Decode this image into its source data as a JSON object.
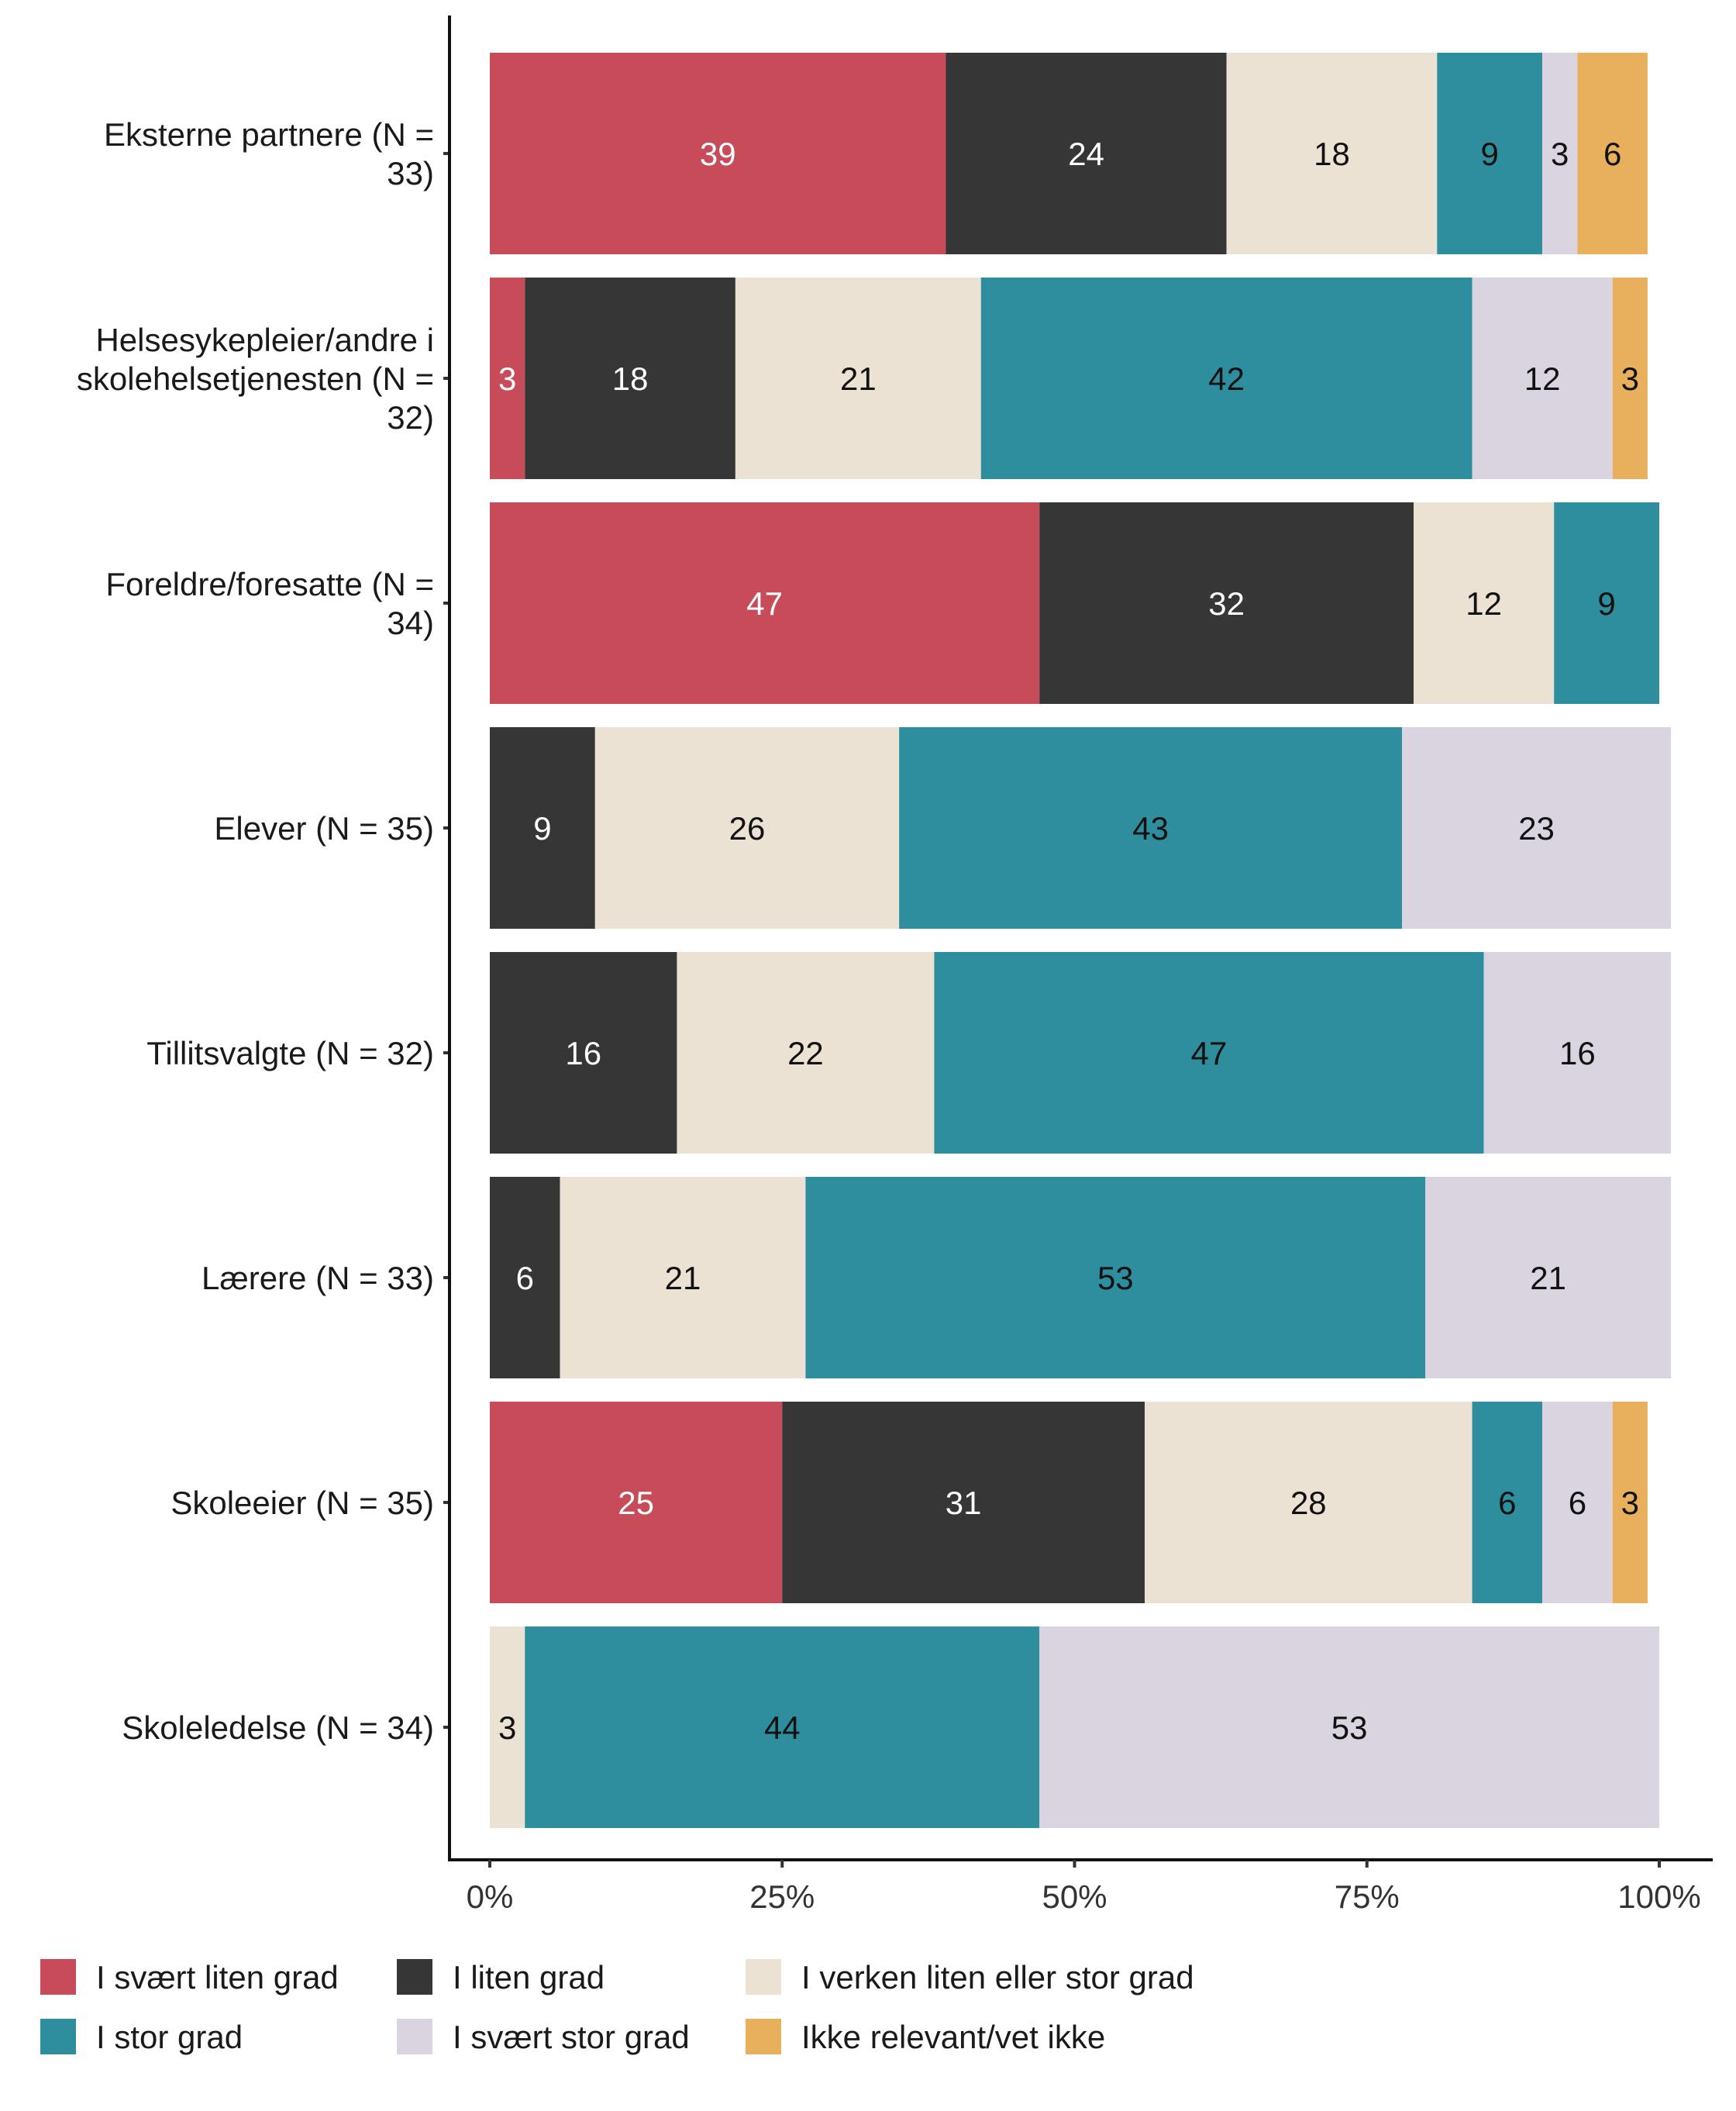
{
  "chart_data": {
    "type": "bar",
    "orientation": "horizontal",
    "stacked": true,
    "categories": [
      "Eksterne partnere (N = 33)",
      "Helsesykepleier/andre i skolehelsetjenesten (N = 32)",
      "Foreldre/foresatte (N = 34)",
      "Elever (N = 35)",
      "Tillitsvalgte (N = 32)",
      "Lærere (N = 33)",
      "Skoleeier (N = 35)",
      "Skoleledelse (N = 34)"
    ],
    "category_lines": [
      [
        "Eksterne partnere (N =",
        "33)"
      ],
      [
        "Helsesykepleier/andre i",
        "skolehelsetjenesten (N =",
        "32)"
      ],
      [
        "Foreldre/foresatte (N =",
        "34)"
      ],
      [
        "Elever (N = 35)"
      ],
      [
        "Tillitsvalgte (N = 32)"
      ],
      [
        "Lærere (N = 33)"
      ],
      [
        "Skoleeier (N = 35)"
      ],
      [
        "Skoleledelse (N = 34)"
      ]
    ],
    "series": [
      {
        "name": "I svært liten grad",
        "color": "#c84b5a",
        "label_color": "#ffffff",
        "values": [
          39,
          3,
          47,
          0,
          0,
          0,
          25,
          0
        ]
      },
      {
        "name": "I liten grad",
        "color": "#363636",
        "label_color": "#ffffff",
        "values": [
          24,
          18,
          32,
          9,
          16,
          6,
          31,
          0
        ]
      },
      {
        "name": "I verken liten eller stor grad",
        "color": "#ece2d4",
        "label_color": "#111111",
        "values": [
          18,
          21,
          12,
          26,
          22,
          21,
          28,
          3
        ]
      },
      {
        "name": "I stor grad",
        "color": "#2e8e9e",
        "label_color": "#111111",
        "values": [
          9,
          42,
          9,
          43,
          47,
          53,
          6,
          44
        ]
      },
      {
        "name": "I svært stor grad",
        "color": "#dad3e0",
        "label_color": "#111111",
        "values": [
          3,
          12,
          0,
          23,
          16,
          21,
          6,
          53
        ]
      },
      {
        "name": "Ikke relevant/vet ikke",
        "color": "#e8b05c",
        "label_color": "#111111",
        "values": [
          6,
          3,
          0,
          0,
          0,
          0,
          3,
          0
        ]
      }
    ],
    "x_ticks": [
      "0%",
      "25%",
      "50%",
      "75%",
      "100%"
    ],
    "xlim": [
      0,
      100
    ],
    "xlabel": "",
    "ylabel": "",
    "title": "",
    "grid": false,
    "legend_position": "bottom-left"
  }
}
